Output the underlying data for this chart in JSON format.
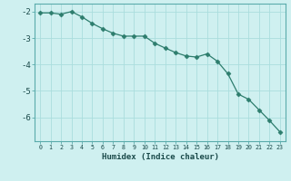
{
  "x": [
    0,
    1,
    2,
    3,
    4,
    5,
    6,
    7,
    8,
    9,
    10,
    11,
    12,
    13,
    14,
    15,
    16,
    17,
    18,
    19,
    20,
    21,
    22,
    23
  ],
  "y": [
    -2.05,
    -2.05,
    -2.1,
    -2.0,
    -2.2,
    -2.45,
    -2.65,
    -2.82,
    -2.93,
    -2.93,
    -2.93,
    -3.2,
    -3.38,
    -3.55,
    -3.68,
    -3.72,
    -3.6,
    -3.88,
    -4.35,
    -5.12,
    -5.32,
    -5.72,
    -6.12,
    -6.55
  ],
  "line_color": "#2d7d6d",
  "marker": "D",
  "marker_size": 2.5,
  "bg_color": "#cff0f0",
  "grid_color": "#aadddd",
  "xlabel": "Humidex (Indice chaleur)",
  "ylim": [
    -6.9,
    -1.7
  ],
  "xlim": [
    -0.5,
    23.5
  ],
  "yticks": [
    -6,
    -5,
    -4,
    -3,
    -2
  ],
  "xticks": [
    0,
    1,
    2,
    3,
    4,
    5,
    6,
    7,
    8,
    9,
    10,
    11,
    12,
    13,
    14,
    15,
    16,
    17,
    18,
    19,
    20,
    21,
    22,
    23
  ]
}
